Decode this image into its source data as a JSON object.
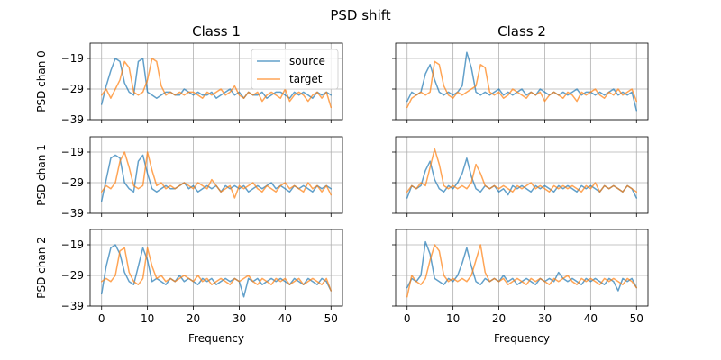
{
  "chart_data": {
    "type": "line",
    "title": "PSD shift",
    "column_titles": [
      "Class 1",
      "Class 2"
    ],
    "row_ylabels": [
      "PSD chan 0",
      "PSD chan 1",
      "PSD chan 2"
    ],
    "xlabel": "Frequency",
    "xlim": [
      -2.5,
      52.5
    ],
    "ylim": [
      -39,
      -14
    ],
    "xticks": [
      0,
      10,
      20,
      30,
      40,
      50
    ],
    "yticks": [
      -39,
      -29,
      -19
    ],
    "grid": true,
    "legend": {
      "placement": "top-right",
      "panel": [
        0,
        0
      ],
      "entries": [
        "source",
        "target"
      ]
    },
    "colors": {
      "source": "#1f77b4",
      "target": "#ff7f0e"
    },
    "x": [
      0,
      1,
      2,
      3,
      4,
      5,
      6,
      7,
      8,
      9,
      10,
      11,
      12,
      13,
      14,
      15,
      16,
      17,
      18,
      19,
      20,
      21,
      22,
      23,
      24,
      25,
      26,
      27,
      28,
      29,
      30,
      31,
      32,
      33,
      34,
      35,
      36,
      37,
      38,
      39,
      40,
      41,
      42,
      43,
      44,
      45,
      46,
      47,
      48,
      49,
      50
    ],
    "panels": [
      [
        {
          "series": [
            {
              "name": "source",
              "values": [
                -34,
                -28,
                -23,
                -19,
                -20,
                -27,
                -30,
                -31,
                -20,
                -19,
                -30,
                -31,
                -32,
                -31,
                -30,
                -30,
                -31,
                -31,
                -29,
                -30,
                -31,
                -30,
                -31,
                -31,
                -30,
                -32,
                -31,
                -30,
                -29,
                -31,
                -30,
                -32,
                -30,
                -31,
                -31,
                -30,
                -32,
                -31,
                -30,
                -30,
                -31,
                -32,
                -30,
                -31,
                -30,
                -31,
                -32,
                -30,
                -31,
                -30,
                -31
              ]
            },
            {
              "name": "target",
              "values": [
                -31,
                -29,
                -32,
                -29,
                -26,
                -20,
                -22,
                -30,
                -31,
                -30,
                -26,
                -19,
                -20,
                -28,
                -31,
                -30,
                -31,
                -30,
                -31,
                -30,
                -30,
                -31,
                -32,
                -30,
                -31,
                -30,
                -29,
                -31,
                -30,
                -28,
                -31,
                -32,
                -30,
                -31,
                -30,
                -33,
                -31,
                -30,
                -31,
                -32,
                -29,
                -33,
                -31,
                -30,
                -31,
                -33,
                -31,
                -30,
                -32,
                -30,
                -35
              ]
            }
          ]
        },
        {
          "series": [
            {
              "name": "source",
              "values": [
                -33,
                -30,
                -31,
                -30,
                -24,
                -21,
                -26,
                -30,
                -31,
                -30,
                -31,
                -30,
                -28,
                -17,
                -22,
                -30,
                -31,
                -30,
                -31,
                -30,
                -29,
                -31,
                -30,
                -31,
                -30,
                -29,
                -31,
                -30,
                -31,
                -29,
                -30,
                -31,
                -30,
                -31,
                -30,
                -31,
                -30,
                -29,
                -31,
                -30,
                -30,
                -31,
                -30,
                -31,
                -30,
                -29,
                -31,
                -30,
                -31,
                -30,
                -36
              ]
            },
            {
              "name": "target",
              "values": [
                -35,
                -32,
                -31,
                -30,
                -31,
                -30,
                -20,
                -21,
                -28,
                -31,
                -32,
                -30,
                -31,
                -30,
                -29,
                -28,
                -21,
                -22,
                -30,
                -31,
                -30,
                -32,
                -31,
                -29,
                -30,
                -31,
                -32,
                -30,
                -31,
                -30,
                -33,
                -31,
                -30,
                -31,
                -32,
                -30,
                -31,
                -33,
                -30,
                -31,
                -30,
                -29,
                -31,
                -32,
                -30,
                -31,
                -29,
                -31,
                -30,
                -29,
                -33
              ]
            }
          ]
        }
      ],
      [
        {
          "series": [
            {
              "name": "source",
              "values": [
                -35,
                -28,
                -21,
                -20,
                -21,
                -29,
                -31,
                -32,
                -22,
                -20,
                -26,
                -31,
                -32,
                -31,
                -30,
                -31,
                -31,
                -30,
                -29,
                -31,
                -30,
                -32,
                -31,
                -30,
                -31,
                -30,
                -32,
                -30,
                -31,
                -30,
                -31,
                -30,
                -32,
                -31,
                -30,
                -31,
                -30,
                -29,
                -31,
                -30,
                -31,
                -32,
                -30,
                -31,
                -30,
                -31,
                -32,
                -30,
                -31,
                -30,
                -31
              ]
            },
            {
              "name": "target",
              "values": [
                -32,
                -30,
                -31,
                -29,
                -22,
                -19,
                -24,
                -30,
                -31,
                -30,
                -19,
                -25,
                -30,
                -29,
                -31,
                -30,
                -31,
                -30,
                -29,
                -30,
                -31,
                -29,
                -30,
                -31,
                -28,
                -30,
                -32,
                -31,
                -30,
                -34,
                -30,
                -31,
                -30,
                -29,
                -31,
                -32,
                -30,
                -31,
                -32,
                -30,
                -29,
                -31,
                -30,
                -31,
                -32,
                -29,
                -31,
                -30,
                -32,
                -30,
                -33
              ]
            }
          ]
        },
        {
          "series": [
            {
              "name": "source",
              "values": [
                -34,
                -30,
                -31,
                -30,
                -25,
                -22,
                -28,
                -31,
                -32,
                -30,
                -31,
                -29,
                -26,
                -21,
                -27,
                -31,
                -32,
                -30,
                -31,
                -30,
                -32,
                -31,
                -33,
                -30,
                -31,
                -30,
                -31,
                -32,
                -30,
                -31,
                -30,
                -31,
                -32,
                -30,
                -31,
                -30,
                -31,
                -32,
                -30,
                -31,
                -30,
                -31,
                -32,
                -30,
                -31,
                -30,
                -31,
                -32,
                -30,
                -31,
                -34
              ]
            },
            {
              "name": "target",
              "values": [
                -32,
                -30,
                -31,
                -29,
                -30,
                -24,
                -18,
                -23,
                -30,
                -31,
                -30,
                -31,
                -30,
                -31,
                -29,
                -23,
                -26,
                -30,
                -31,
                -30,
                -31,
                -30,
                -31,
                -32,
                -30,
                -31,
                -30,
                -29,
                -31,
                -30,
                -31,
                -32,
                -30,
                -31,
                -30,
                -31,
                -30,
                -31,
                -32,
                -30,
                -31,
                -29,
                -32,
                -30,
                -31,
                -30,
                -31,
                -32,
                -30,
                -31,
                -32
              ]
            }
          ]
        }
      ],
      [
        {
          "series": [
            {
              "name": "source",
              "values": [
                -35,
                -26,
                -20,
                -19,
                -22,
                -28,
                -31,
                -32,
                -26,
                -20,
                -24,
                -31,
                -30,
                -31,
                -32,
                -30,
                -31,
                -29,
                -31,
                -30,
                -31,
                -32,
                -30,
                -31,
                -30,
                -32,
                -31,
                -30,
                -31,
                -30,
                -31,
                -36,
                -30,
                -31,
                -30,
                -32,
                -31,
                -30,
                -31,
                -30,
                -31,
                -32,
                -30,
                -31,
                -32,
                -30,
                -31,
                -32,
                -30,
                -31,
                -34
              ]
            },
            {
              "name": "target",
              "values": [
                -31,
                -30,
                -31,
                -29,
                -21,
                -20,
                -28,
                -31,
                -32,
                -30,
                -20,
                -26,
                -30,
                -29,
                -31,
                -30,
                -31,
                -30,
                -29,
                -30,
                -31,
                -29,
                -31,
                -30,
                -32,
                -31,
                -30,
                -31,
                -32,
                -30,
                -31,
                -30,
                -29,
                -31,
                -32,
                -30,
                -31,
                -32,
                -30,
                -31,
                -30,
                -32,
                -31,
                -30,
                -32,
                -31,
                -30,
                -31,
                -32,
                -30,
                -34
              ]
            }
          ]
        },
        {
          "series": [
            {
              "name": "source",
              "values": [
                -33,
                -30,
                -31,
                -29,
                -18,
                -22,
                -30,
                -31,
                -32,
                -30,
                -31,
                -29,
                -25,
                -20,
                -26,
                -31,
                -32,
                -30,
                -31,
                -30,
                -31,
                -29,
                -31,
                -30,
                -32,
                -31,
                -30,
                -31,
                -32,
                -30,
                -31,
                -30,
                -31,
                -28,
                -30,
                -31,
                -30,
                -31,
                -32,
                -30,
                -31,
                -30,
                -31,
                -32,
                -30,
                -31,
                -34,
                -30,
                -31,
                -30,
                -33
              ]
            },
            {
              "name": "target",
              "values": [
                -36,
                -29,
                -31,
                -32,
                -30,
                -24,
                -19,
                -21,
                -29,
                -31,
                -30,
                -31,
                -30,
                -31,
                -29,
                -24,
                -19,
                -28,
                -31,
                -30,
                -31,
                -30,
                -32,
                -31,
                -30,
                -31,
                -32,
                -30,
                -31,
                -30,
                -31,
                -32,
                -30,
                -31,
                -30,
                -29,
                -31,
                -32,
                -30,
                -31,
                -30,
                -31,
                -32,
                -30,
                -31,
                -30,
                -31,
                -32,
                -30,
                -31,
                -33
              ]
            }
          ]
        }
      ]
    ]
  }
}
